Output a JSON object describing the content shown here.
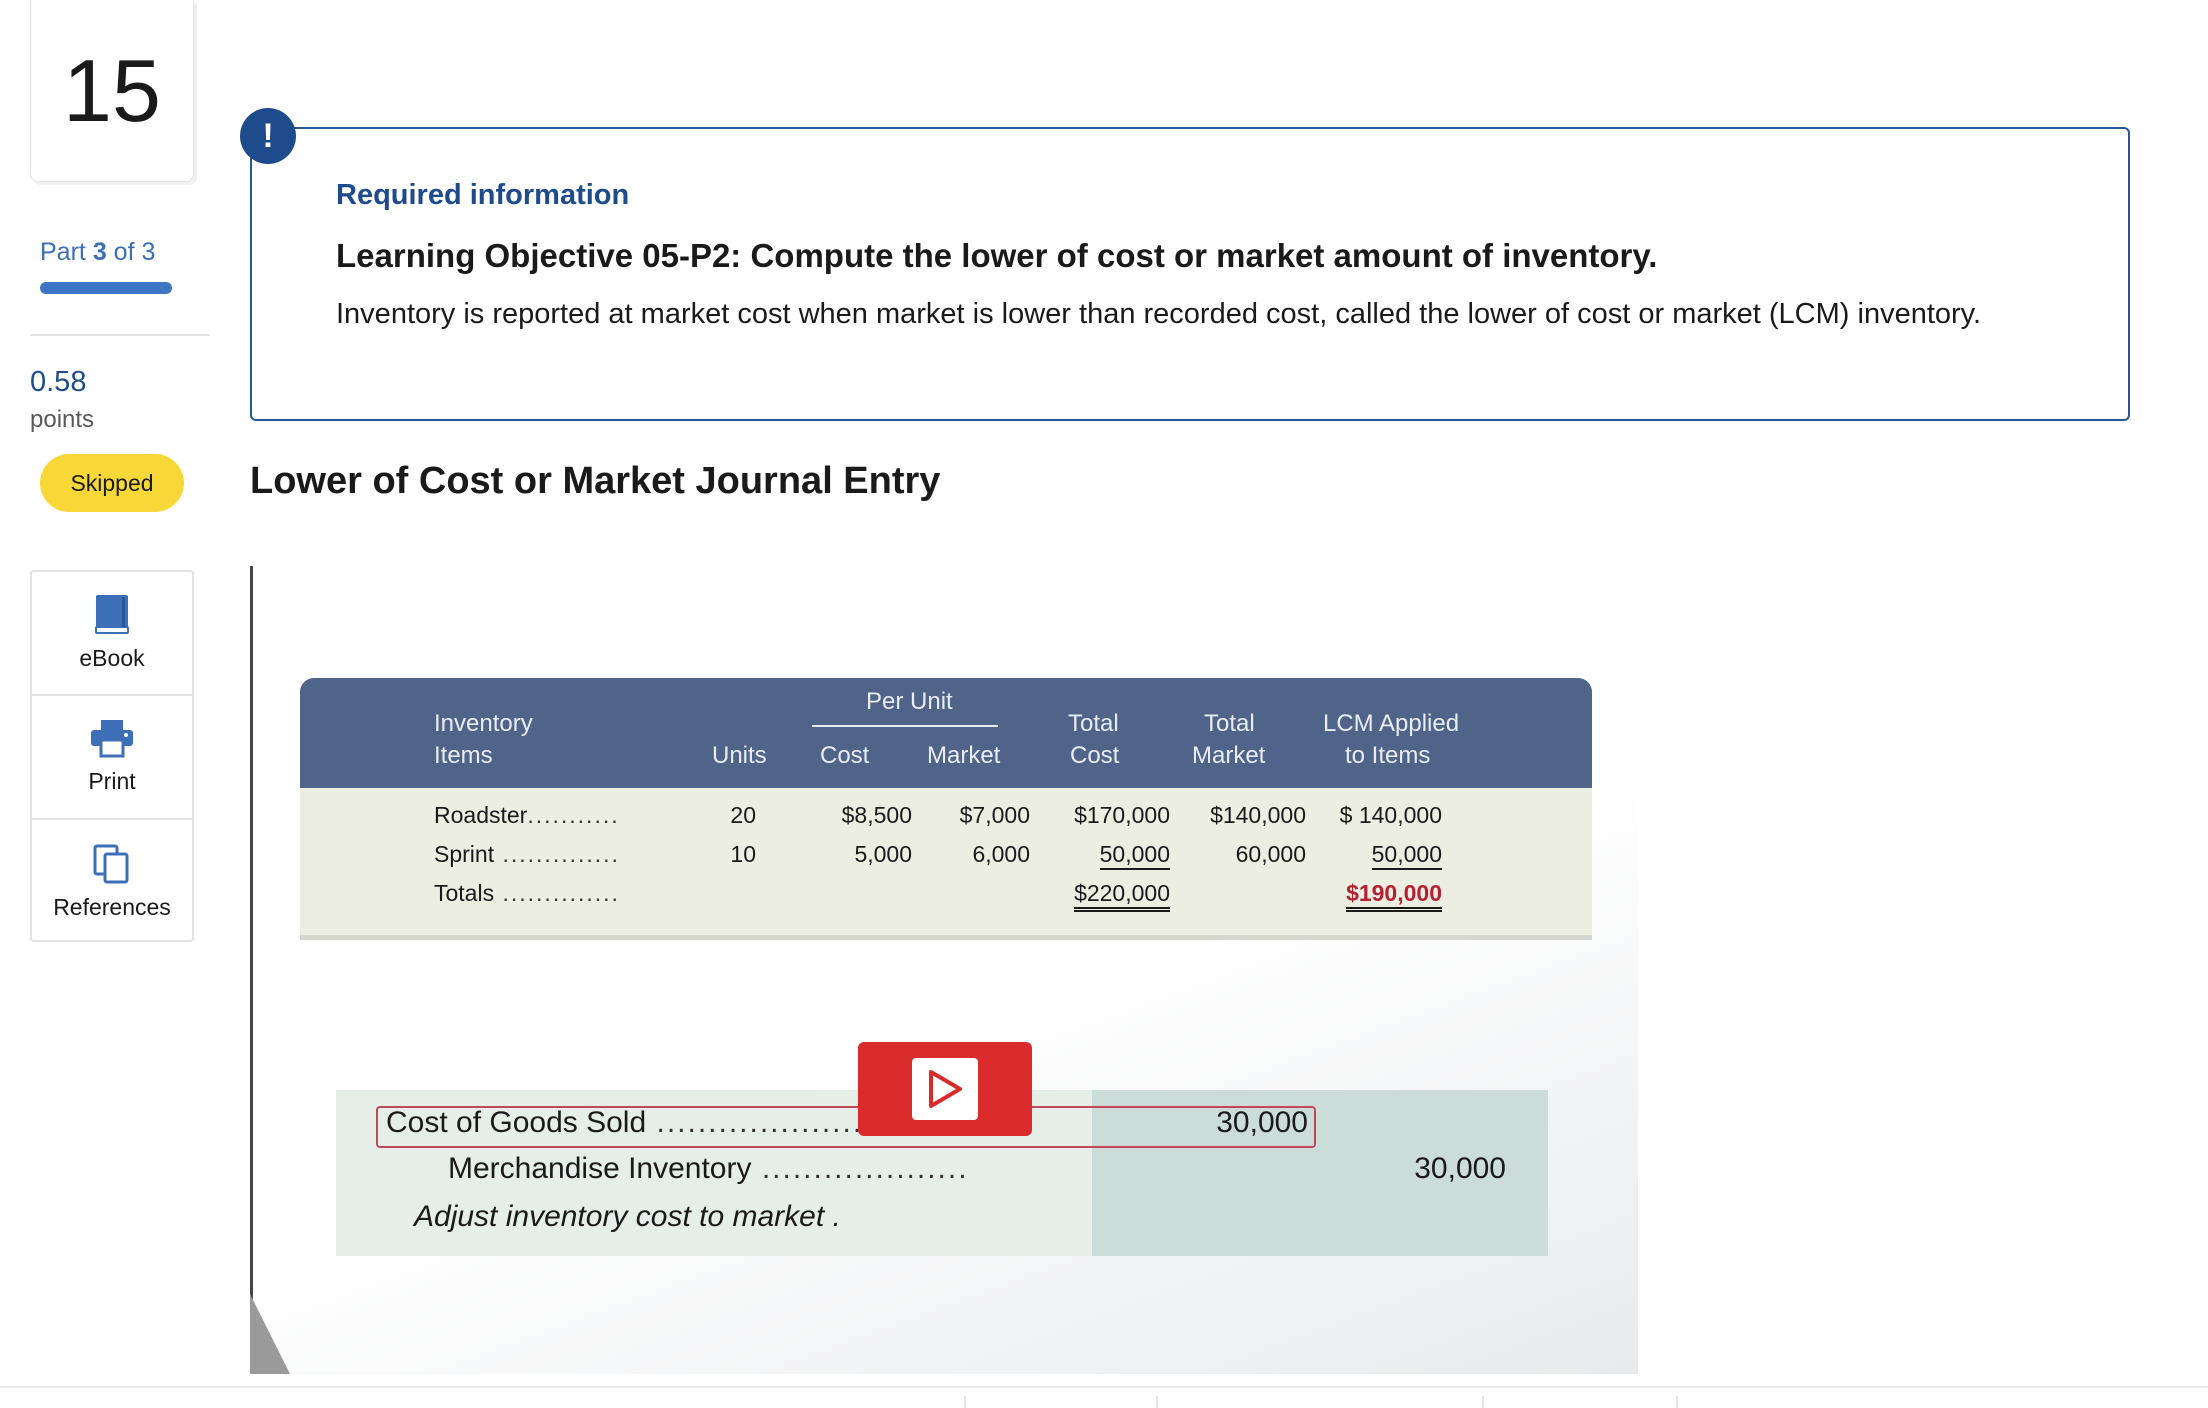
{
  "question": {
    "number": "15"
  },
  "progress": {
    "part_word": "Part",
    "part_current": "3",
    "part_of": "of 3",
    "fraction": 1.0
  },
  "points": {
    "value": "0.58",
    "label": "points"
  },
  "status": {
    "label": "Skipped",
    "color": "#f8d838"
  },
  "tools": [
    {
      "label": "eBook",
      "icon": "book-icon"
    },
    {
      "label": "Print",
      "icon": "printer-icon"
    },
    {
      "label": "References",
      "icon": "copy-icon"
    }
  ],
  "info": {
    "heading": "Required information",
    "objective": "Learning Objective 05-P2: Compute the lower of cost or market amount of inventory.",
    "description": "Inventory is reported at market cost when market is lower than recorded cost, called the lower of cost or market (LCM) inventory."
  },
  "section_title": "Lower of Cost or Market Journal Entry",
  "video": {
    "table": {
      "headers": {
        "inventory": "Inventory",
        "items": "Items",
        "units": "Units",
        "per_unit": "Per Unit",
        "cost": "Cost",
        "market": "Market",
        "total": "Total",
        "total_cost": "Cost",
        "total2": "Total",
        "total_market": "Market",
        "lcm1": "LCM Applied",
        "lcm2": "to Items"
      },
      "rows": [
        {
          "item": "Roadster",
          "units": "20",
          "cost": "$8,500",
          "market": "$7,000",
          "total_cost": "$170,000",
          "total_market": "$140,000",
          "lcm": "$ 140,000"
        },
        {
          "item": "Sprint",
          "units": "10",
          "cost": "5,000",
          "market": "6,000",
          "total_cost": "50,000",
          "total_market": "60,000",
          "lcm": "50,000"
        }
      ],
      "totals": {
        "label": "Totals",
        "total_cost": "$220,000",
        "lcm": "$190,000"
      }
    },
    "journal": {
      "debit_account": "Cost of Goods Sold",
      "debit_amount": "30,000",
      "credit_account": "Merchandise Inventory",
      "credit_amount": "30,000",
      "memo": "Adjust inventory cost to market ."
    }
  }
}
